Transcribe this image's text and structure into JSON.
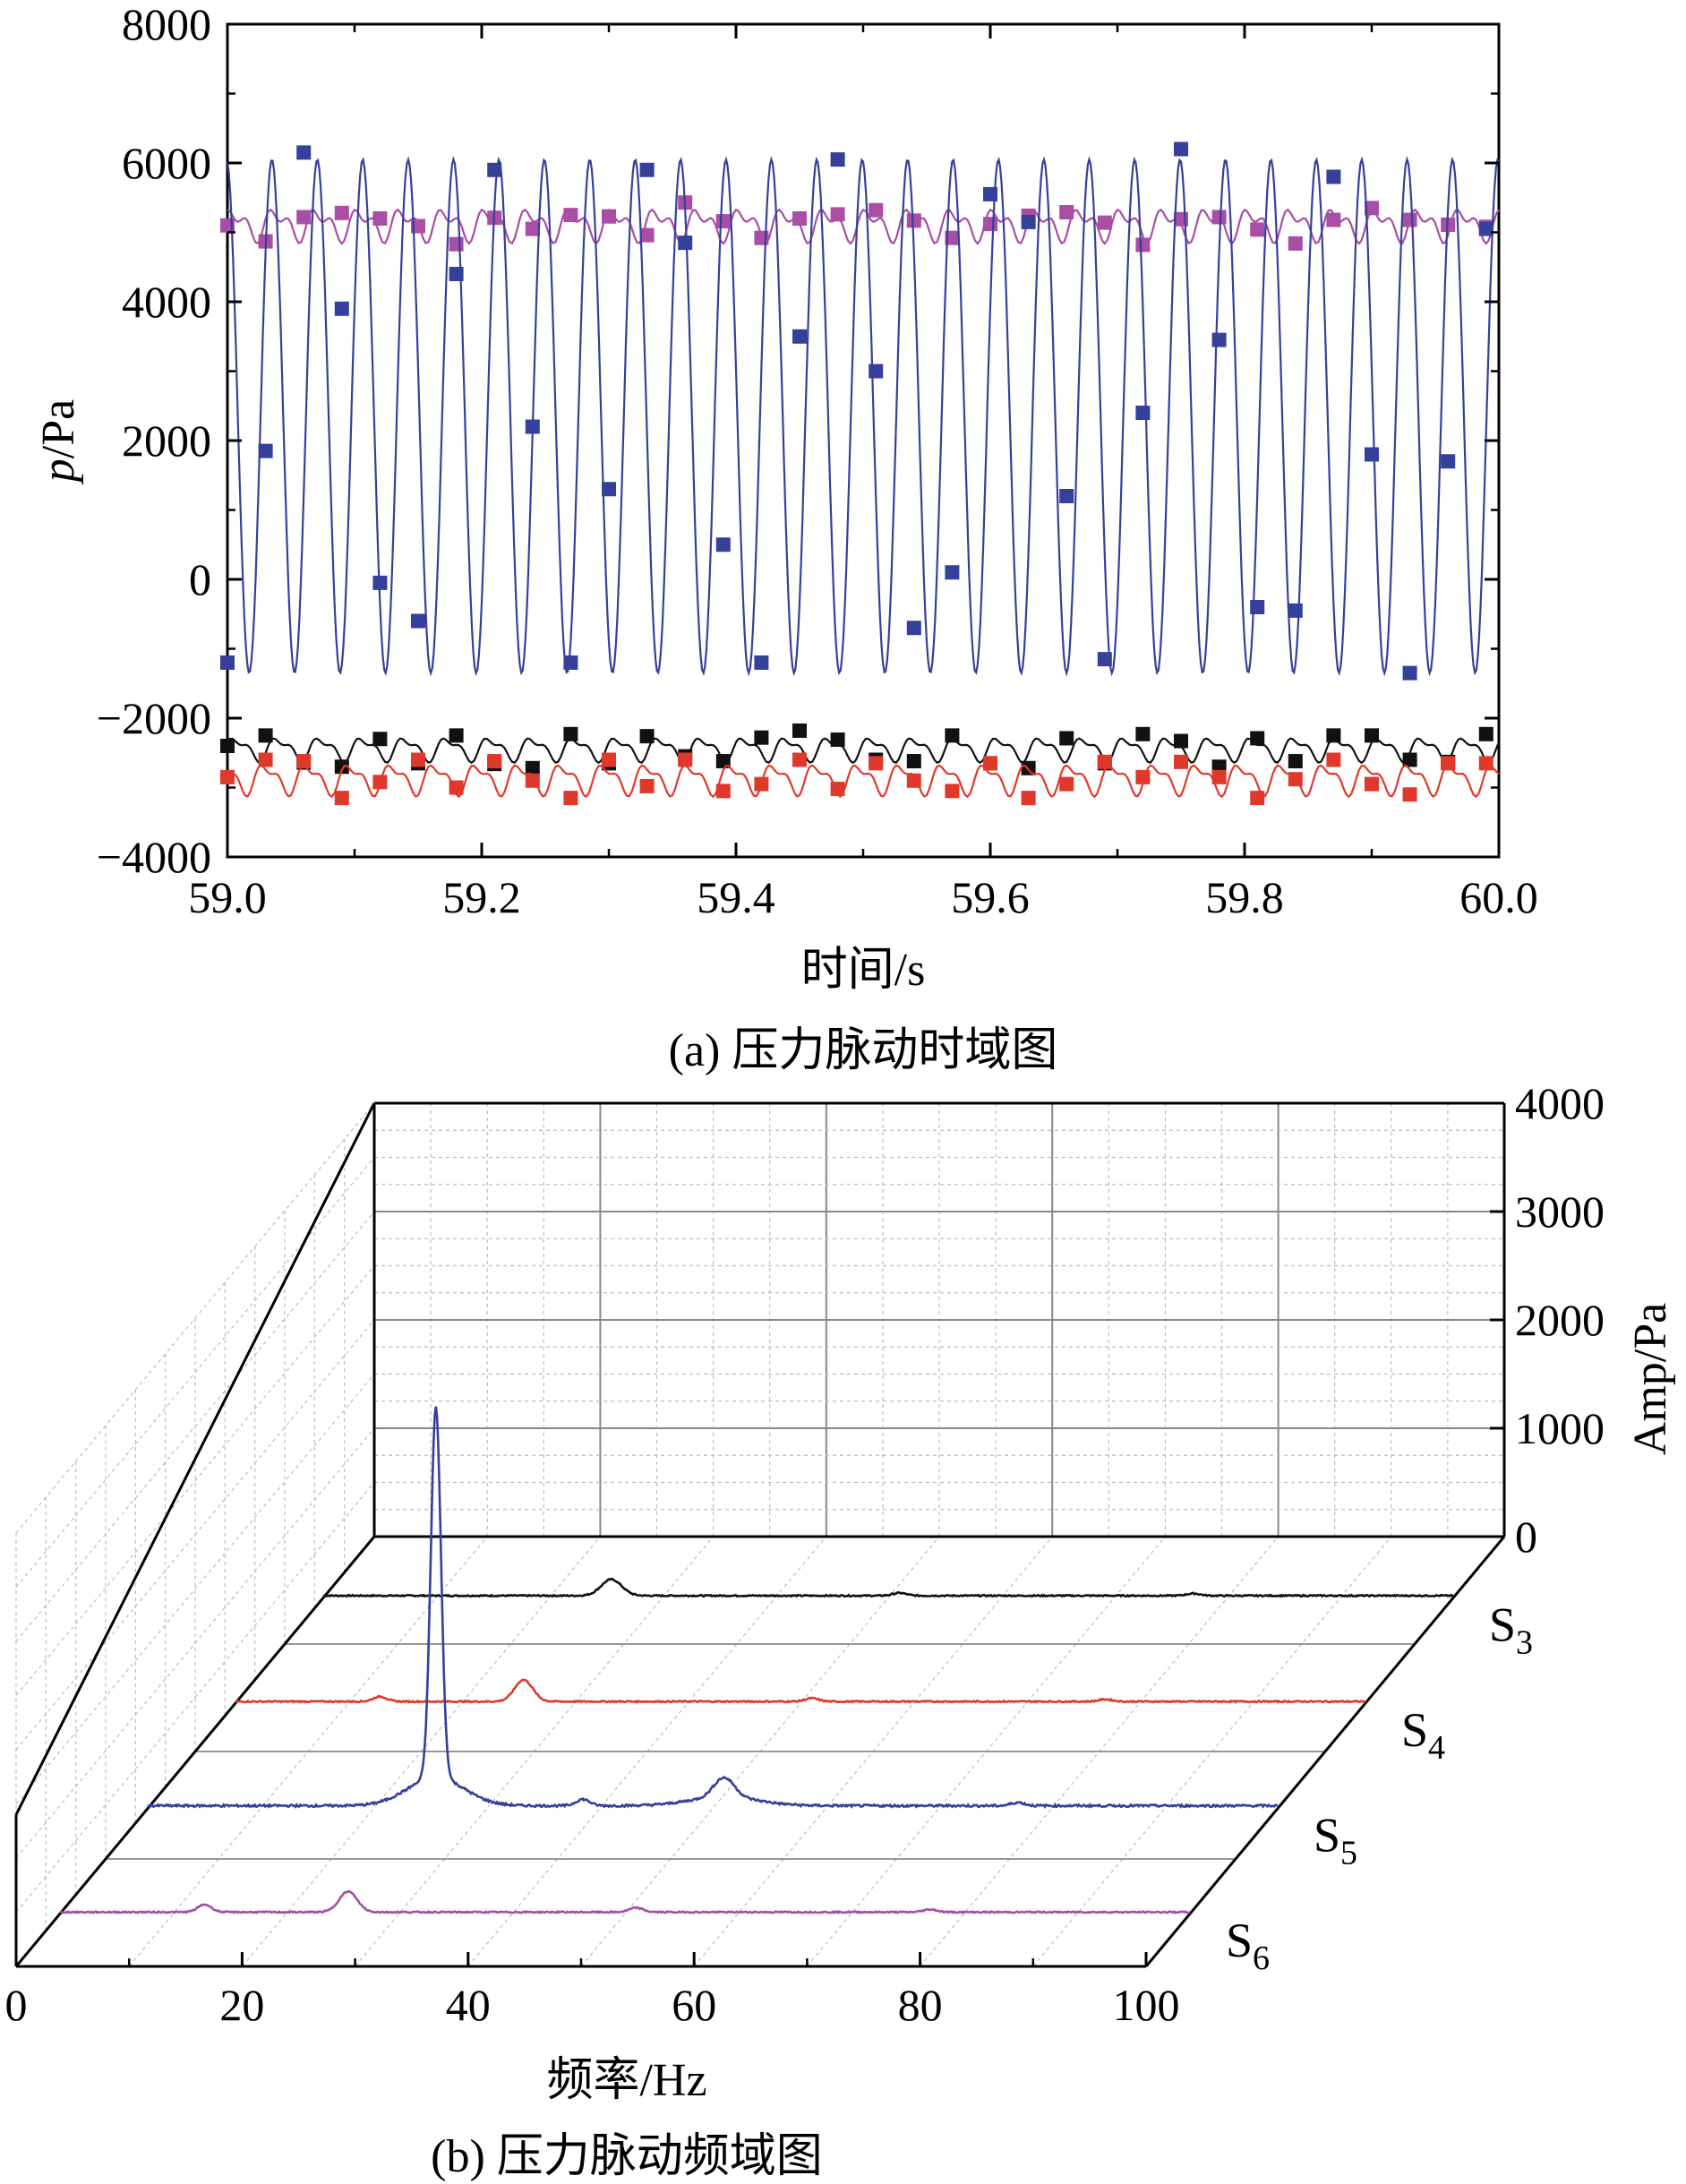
{
  "chart_data": [
    {
      "type": "line",
      "caption": "(a) 压力脉动时域图",
      "xlabel": "时间/s",
      "ylabel_italic": "p",
      "ylabel_unit": "/Pa",
      "xlim": [
        59.0,
        60.0
      ],
      "ylim": [
        -4000,
        8000
      ],
      "xticks": [
        "59.0",
        "59.2",
        "59.4",
        "59.6",
        "59.8",
        "60.0"
      ],
      "yticks": [
        "8000",
        "6000",
        "4000",
        "2000",
        "0",
        "−2000",
        "−4000"
      ],
      "grid": false,
      "legend": "none",
      "series": [
        {
          "key": "S6",
          "color": "#a84ea4",
          "mean": 5120,
          "amplitude": 170,
          "frequency_hz": 30,
          "harmonic": 120,
          "phase": 0.6,
          "line_samples": 500,
          "markers": {
            "x": [
              59.0,
              59.03,
              59.06,
              59.09,
              59.12,
              59.15,
              59.18,
              59.21,
              59.24,
              59.27,
              59.3,
              59.33,
              59.36,
              59.39,
              59.42,
              59.45,
              59.48,
              59.51,
              59.54,
              59.57,
              59.6,
              59.63,
              59.66,
              59.69,
              59.72,
              59.75,
              59.78,
              59.81,
              59.84,
              59.87,
              59.9,
              59.93,
              59.96,
              59.99
            ],
            "y": [
              5100,
              4870,
              5220,
              5280,
              5200,
              5090,
              4830,
              5210,
              5050,
              5250,
              5230,
              4960,
              5430,
              5160,
              4920,
              5200,
              5260,
              5320,
              5170,
              4920,
              5120,
              5240,
              5290,
              5140,
              4820,
              5190,
              5220,
              5040,
              4840,
              5180,
              5350,
              5180,
              5110,
              5080
            ]
          }
        },
        {
          "key": "S5",
          "color": "#34409a",
          "mean": 2350,
          "amplitude": 3700,
          "frequency_hz": 28,
          "harmonic": 0,
          "phase": 1.7,
          "line_samples": 900,
          "markers": {
            "x": [
              59.0,
              59.03,
              59.06,
              59.09,
              59.12,
              59.15,
              59.18,
              59.21,
              59.24,
              59.27,
              59.3,
              59.33,
              59.36,
              59.39,
              59.42,
              59.45,
              59.48,
              59.51,
              59.54,
              59.57,
              59.6,
              59.63,
              59.66,
              59.69,
              59.72,
              59.75,
              59.78,
              59.81,
              59.84,
              59.87,
              59.9,
              59.93,
              59.96,
              59.99
            ],
            "y": [
              -1200,
              1850,
              6150,
              3900,
              -50,
              -600,
              4400,
              5900,
              2200,
              -1200,
              1300,
              5900,
              4850,
              500,
              -1200,
              3500,
              6050,
              3000,
              -700,
              100,
              5550,
              5150,
              1200,
              -1150,
              2400,
              6200,
              3450,
              -400,
              -450,
              5800,
              1800,
              -1350,
              1700,
              5050
            ]
          }
        },
        {
          "key": "S3",
          "color": "#111111",
          "mean": -2440,
          "amplitude": 140,
          "frequency_hz": 30,
          "harmonic": 70,
          "phase": 0.2,
          "line_samples": 500,
          "markers": {
            "x": [
              59.0,
              59.03,
              59.06,
              59.09,
              59.12,
              59.15,
              59.18,
              59.21,
              59.24,
              59.27,
              59.3,
              59.33,
              59.36,
              59.39,
              59.42,
              59.45,
              59.48,
              59.51,
              59.54,
              59.57,
              59.6,
              59.63,
              59.66,
              59.69,
              59.72,
              59.75,
              59.78,
              59.81,
              59.84,
              59.87,
              59.9,
              59.93,
              59.96,
              59.99
            ],
            "y": [
              -2400,
              -2250,
              -2640,
              -2700,
              -2300,
              -2650,
              -2250,
              -2660,
              -2720,
              -2230,
              -2650,
              -2260,
              -2550,
              -2620,
              -2280,
              -2180,
              -2310,
              -2600,
              -2620,
              -2250,
              -2650,
              -2720,
              -2290,
              -2650,
              -2230,
              -2330,
              -2700,
              -2290,
              -2620,
              -2250,
              -2250,
              -2600,
              -2630,
              -2230
            ]
          }
        },
        {
          "key": "S4",
          "color": "#e0392b",
          "mean": -2870,
          "amplitude": 180,
          "frequency_hz": 30,
          "harmonic": 90,
          "phase": 2.1,
          "line_samples": 500,
          "markers": {
            "x": [
              59.0,
              59.03,
              59.06,
              59.09,
              59.12,
              59.15,
              59.18,
              59.21,
              59.24,
              59.27,
              59.3,
              59.33,
              59.36,
              59.39,
              59.42,
              59.45,
              59.48,
              59.51,
              59.54,
              59.57,
              59.6,
              59.63,
              59.66,
              59.69,
              59.72,
              59.75,
              59.78,
              59.81,
              59.84,
              59.87,
              59.9,
              59.93,
              59.96,
              59.99
            ],
            "y": [
              -2850,
              -2600,
              -2620,
              -3150,
              -2920,
              -2600,
              -3000,
              -2620,
              -2900,
              -3150,
              -2600,
              -2980,
              -2600,
              -3050,
              -2950,
              -2600,
              -3020,
              -2650,
              -2900,
              -3050,
              -2650,
              -3150,
              -2950,
              -2630,
              -2850,
              -2630,
              -2850,
              -3150,
              -2880,
              -2600,
              -2950,
              -3100,
              -2650,
              -2650
            ]
          }
        }
      ]
    },
    {
      "type": "line",
      "variant": "3d-waterfall",
      "caption": "(b) 压力脉动频域图",
      "xlabel": "频率/Hz",
      "zlabel": "Amp/Pa",
      "xlim": [
        0,
        100
      ],
      "zlim": [
        0,
        4000
      ],
      "xticks": [
        "0",
        "20",
        "40",
        "60",
        "80",
        "100"
      ],
      "zticks": [
        "0",
        "1000",
        "2000",
        "3000",
        "4000"
      ],
      "grid": true,
      "series_labels": [
        {
          "letter": "S",
          "sub": "3"
        },
        {
          "letter": "S",
          "sub": "4"
        },
        {
          "letter": "S",
          "sub": "5"
        },
        {
          "letter": "S",
          "sub": "6"
        }
      ],
      "series": [
        {
          "key": "S3",
          "color": "#111111",
          "baseline": 20,
          "noise": 12,
          "peaks": [
            {
              "x": 25.5,
              "amp": 150,
              "width": 0.9
            },
            {
              "x": 51,
              "amp": 25,
              "width": 0.6
            },
            {
              "x": 77,
              "amp": 20,
              "width": 0.6
            }
          ]
        },
        {
          "key": "S4",
          "color": "#e0392b",
          "baseline": 15,
          "noise": 12,
          "peaks": [
            {
              "x": 12.8,
              "amp": 45,
              "width": 0.6
            },
            {
              "x": 25.5,
              "amp": 200,
              "width": 0.8
            },
            {
              "x": 51,
              "amp": 30,
              "width": 0.6
            },
            {
              "x": 77,
              "amp": 20,
              "width": 0.6
            }
          ]
        },
        {
          "key": "S5",
          "color": "#34409a",
          "baseline": 25,
          "noise": 20,
          "peaks": [
            {
              "x": 25.5,
              "amp": 3420,
              "width": 0.45
            },
            {
              "x": 25.5,
              "amp": 260,
              "width": 2.5
            },
            {
              "x": 38.5,
              "amp": 60,
              "width": 0.6
            },
            {
              "x": 51,
              "amp": 180,
              "width": 0.9
            },
            {
              "x": 51,
              "amp": 80,
              "width": 3.0
            },
            {
              "x": 77,
              "amp": 30,
              "width": 0.6
            }
          ]
        },
        {
          "key": "S6",
          "color": "#a84ea4",
          "baseline": 15,
          "noise": 12,
          "peaks": [
            {
              "x": 12.8,
              "amp": 70,
              "width": 0.6
            },
            {
              "x": 25.5,
              "amp": 190,
              "width": 0.8
            },
            {
              "x": 51,
              "amp": 40,
              "width": 0.6
            },
            {
              "x": 77,
              "amp": 25,
              "width": 0.6
            }
          ]
        }
      ]
    }
  ]
}
